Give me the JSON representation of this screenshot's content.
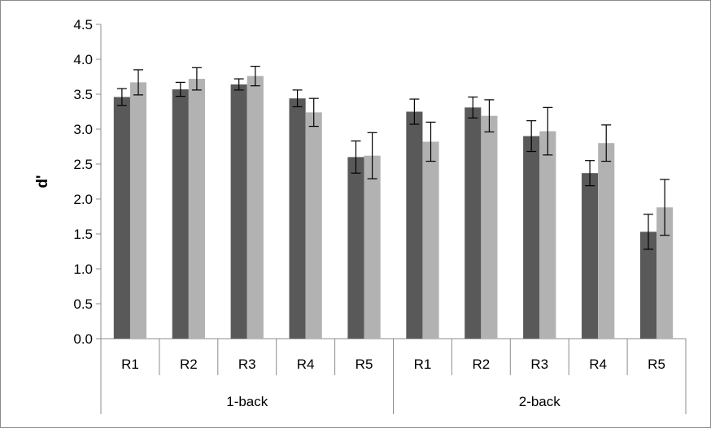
{
  "chart_data": {
    "type": "bar",
    "title": "",
    "xlabel": "",
    "ylabel": "d'",
    "ylim": [
      0,
      4.5
    ],
    "yticks": [
      "0.0",
      "0.5",
      "1.0",
      "1.5",
      "2.0",
      "2.5",
      "3.0",
      "3.5",
      "4.0",
      "4.5"
    ],
    "grid": false,
    "legend": "none",
    "groups": [
      {
        "label": "1-back",
        "categories": [
          "R1",
          "R2",
          "R3",
          "R4",
          "R5"
        ]
      },
      {
        "label": "2-back",
        "categories": [
          "R1",
          "R2",
          "R3",
          "R4",
          "R5"
        ]
      }
    ],
    "series": [
      {
        "color": "#595959",
        "values": [
          3.46,
          3.57,
          3.64,
          3.44,
          2.6,
          3.25,
          3.31,
          2.9,
          2.37,
          1.53
        ],
        "errors": [
          0.12,
          0.1,
          0.08,
          0.12,
          0.23,
          0.18,
          0.15,
          0.22,
          0.18,
          0.25
        ]
      },
      {
        "color": "#b2b2b2",
        "values": [
          3.67,
          3.72,
          3.76,
          3.24,
          2.62,
          2.82,
          3.19,
          2.97,
          2.8,
          1.88
        ],
        "errors": [
          0.18,
          0.16,
          0.14,
          0.2,
          0.33,
          0.28,
          0.23,
          0.34,
          0.26,
          0.4
        ]
      }
    ]
  }
}
